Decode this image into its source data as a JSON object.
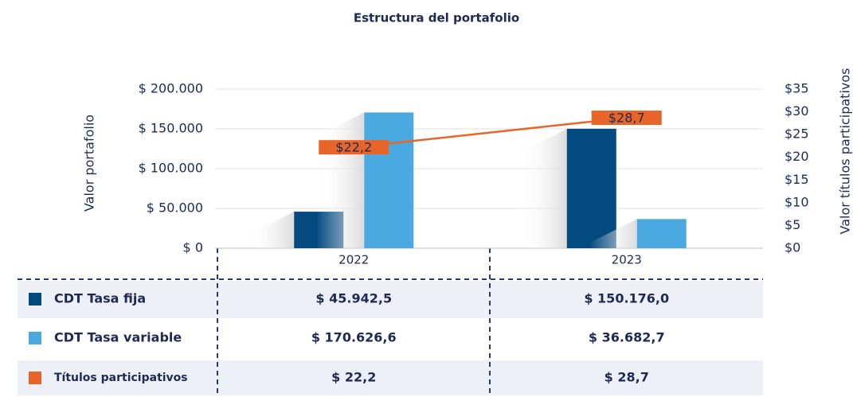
{
  "chart_data": {
    "type": "bar",
    "title": "Estructura del portafolio",
    "ylabel": "Valor portafolio",
    "y2label": "Valor títulos participativos",
    "categories": [
      "2022",
      "2023"
    ],
    "series": [
      {
        "name": "CDT Tasa fija",
        "color": "#034a80",
        "values": [
          45942.5,
          150176.0
        ],
        "table_labels": [
          "$ 45.942,5",
          "$ 150.176,0"
        ]
      },
      {
        "name": "CDT Tasa variable",
        "color": "#4aa9e0",
        "values": [
          170626.6,
          36682.7
        ],
        "table_labels": [
          "$ 170.626,6",
          "$ 36.682,7"
        ]
      },
      {
        "name": "Títulos participativos",
        "color": "#e8652a",
        "type": "line",
        "axis": "y2",
        "values": [
          22.2,
          28.7
        ],
        "value_labels": [
          "$22,2",
          "$28,7"
        ],
        "table_labels": [
          "$ 22,2",
          "$ 28,7"
        ]
      }
    ],
    "ylim": [
      0,
      200000
    ],
    "yticks": [
      {
        "value": 0,
        "label": "$ 0"
      },
      {
        "value": 50000,
        "label": "$ 50.000"
      },
      {
        "value": 100000,
        "label": "$ 100.000"
      },
      {
        "value": 150000,
        "label": "$ 150.000"
      },
      {
        "value": 200000,
        "label": "$ 200.000"
      }
    ],
    "y2lim": [
      0,
      35
    ],
    "y2ticks": [
      {
        "value": 0,
        "label": "$0"
      },
      {
        "value": 5,
        "label": "$5"
      },
      {
        "value": 10,
        "label": "$10"
      },
      {
        "value": 15,
        "label": "$15"
      },
      {
        "value": 20,
        "label": "$20"
      },
      {
        "value": 25,
        "label": "$25"
      },
      {
        "value": 30,
        "label": "$30"
      },
      {
        "value": 35,
        "label": "$35"
      }
    ],
    "grid": true
  }
}
